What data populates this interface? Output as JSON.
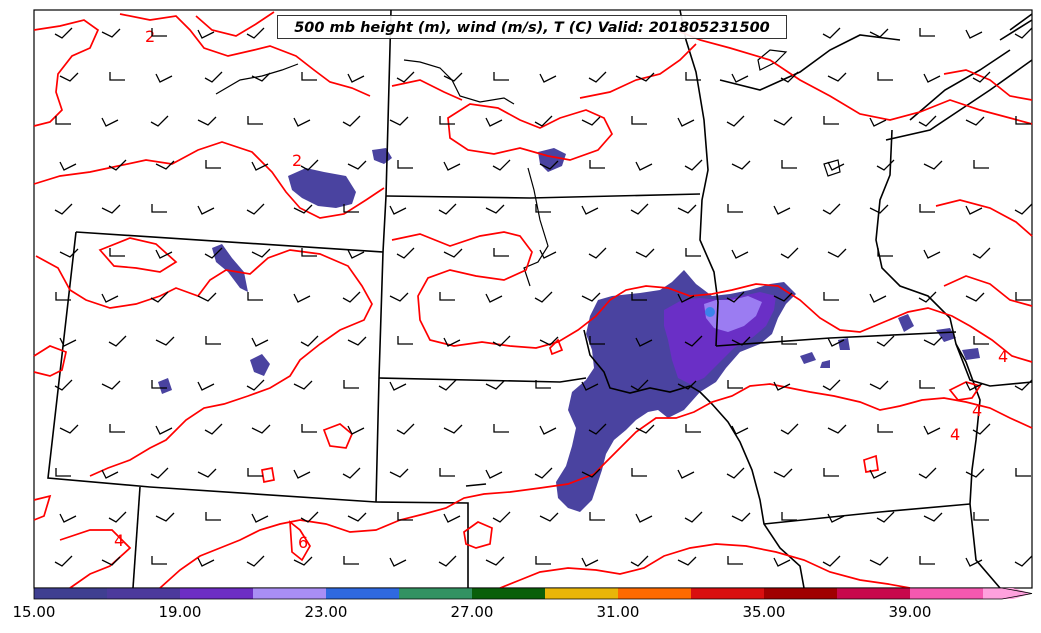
{
  "title": "500 mb height (m), wind (m/s), T (C) Valid: 201805231500",
  "contour_labels": [
    "2",
    "2",
    "4",
    "4",
    "4",
    "4",
    "6"
  ],
  "colorbar": {
    "tick_labels": [
      "15.00",
      "19.00",
      "23.00",
      "27.00",
      "31.00",
      "35.00",
      "39.00"
    ],
    "colors": [
      "#3f3f91",
      "#4c3a9c",
      "#6d2ec4",
      "#a98ef5",
      "#2f69e0",
      "#329262",
      "#0a5f0a",
      "#e9b609",
      "#ff6a00",
      "#d90f0f",
      "#a00000",
      "#c8094c",
      "#f558b0",
      "#ffa1dd"
    ]
  },
  "shading": {
    "colors": [
      "#4a43a0",
      "#6a2fc6",
      "#9b7cf2",
      "#3b83ea"
    ]
  },
  "lines": {
    "contour_color": "#ff0000",
    "border_color": "#000000"
  }
}
